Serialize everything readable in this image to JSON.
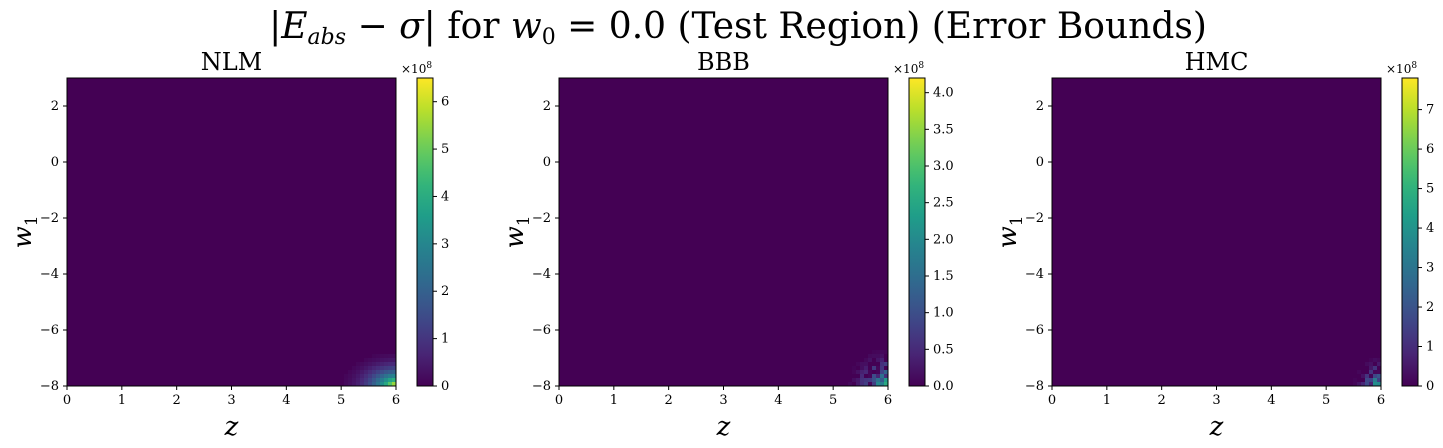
{
  "figure": {
    "suptitle_parts": {
      "open": "|",
      "E": "E",
      "abs": "abs",
      "minus": " − ",
      "sigma": "σ",
      "close": "|",
      "for": " for ",
      "w": "w",
      "zero": "0",
      "eq": " = 0.0 (Test Region) (Error Bounds)"
    }
  },
  "chart_data": [
    {
      "type": "heatmap",
      "title": "NLM",
      "xlabel": "z",
      "ylabel_base": "w",
      "ylabel_sub": "1",
      "xlim": [
        0,
        6
      ],
      "ylim": [
        -8,
        3
      ],
      "xticks": [
        "0",
        "1",
        "2",
        "3",
        "4",
        "5",
        "6"
      ],
      "yticks": [
        "−8",
        "−6",
        "−4",
        "−2",
        "0",
        "2"
      ],
      "colorbar": {
        "range": [
          0,
          650000000
        ],
        "ticks": [
          0,
          100000000,
          200000000,
          300000000,
          400000000,
          500000000,
          600000000
        ],
        "tick_labels": [
          "0",
          "1",
          "2",
          "3",
          "4",
          "5",
          "6"
        ],
        "exponent_base": "×10",
        "exponent": "8",
        "colormap": "viridis"
      },
      "hotspot": {
        "pattern": "smooth",
        "z_peak": 6.0,
        "w1_peak": -8.0,
        "peak_value": 650000000,
        "extent_z": 1.3,
        "extent_w1": 1.6
      }
    },
    {
      "type": "heatmap",
      "title": "BBB",
      "xlabel": "z",
      "ylabel_base": "w",
      "ylabel_sub": "1",
      "xlim": [
        0,
        6
      ],
      "ylim": [
        -8,
        3
      ],
      "xticks": [
        "0",
        "1",
        "2",
        "3",
        "4",
        "5",
        "6"
      ],
      "yticks": [
        "−8",
        "−6",
        "−4",
        "−2",
        "0",
        "2"
      ],
      "colorbar": {
        "range": [
          0,
          420000000
        ],
        "ticks": [
          0,
          50000000,
          100000000,
          150000000,
          200000000,
          250000000,
          300000000,
          350000000,
          400000000
        ],
        "tick_labels": [
          "0.0",
          "0.5",
          "1.0",
          "1.5",
          "2.0",
          "2.5",
          "3.0",
          "3.5",
          "4.0"
        ],
        "exponent_base": "×10",
        "exponent": "8",
        "colormap": "viridis"
      },
      "hotspot": {
        "pattern": "noisy",
        "z_peak": 6.0,
        "w1_peak": -8.0,
        "peak_value": 420000000,
        "extent_z": 0.9,
        "extent_w1": 1.6
      }
    },
    {
      "type": "heatmap",
      "title": "HMC",
      "xlabel": "z",
      "ylabel_base": "w",
      "ylabel_sub": "1",
      "xlim": [
        0,
        6
      ],
      "ylim": [
        -8,
        3
      ],
      "xticks": [
        "0",
        "1",
        "2",
        "3",
        "4",
        "5",
        "6"
      ],
      "yticks": [
        "−8",
        "−6",
        "−4",
        "−2",
        "0",
        "2"
      ],
      "colorbar": {
        "range": [
          0,
          780000000
        ],
        "ticks": [
          0,
          100000000,
          200000000,
          300000000,
          400000000,
          500000000,
          600000000,
          700000000
        ],
        "tick_labels": [
          "0",
          "1",
          "2",
          "3",
          "4",
          "5",
          "6",
          "7"
        ],
        "exponent_base": "×10",
        "exponent": "8",
        "colormap": "viridis"
      },
      "hotspot": {
        "pattern": "noisy",
        "z_peak": 6.0,
        "w1_peak": -8.0,
        "peak_value": 780000000,
        "extent_z": 0.6,
        "extent_w1": 1.3
      }
    }
  ]
}
